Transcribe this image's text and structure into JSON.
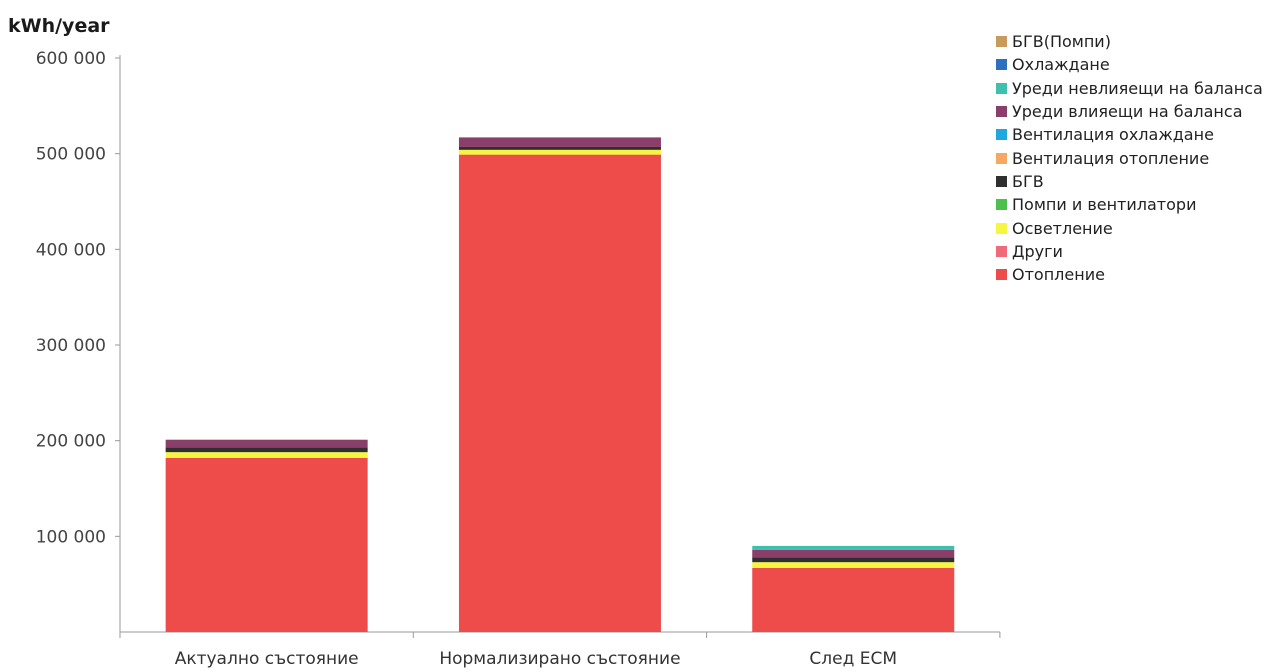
{
  "chart_data": {
    "type": "bar",
    "stacked": true,
    "ylabel": "kWh/year",
    "ylim": [
      0,
      600000
    ],
    "yticks": [
      "100 000",
      "200 000",
      "300 000",
      "400 000",
      "500 000",
      "600 000"
    ],
    "ytick_values": [
      100000,
      200000,
      300000,
      400000,
      500000,
      600000
    ],
    "categories": [
      "Актуално състояние",
      "Нормализирано състояние",
      "След ЕСМ"
    ],
    "legend_position": "right",
    "grid": false,
    "series": [
      {
        "name": "Отопление",
        "color": "#ee4b4b",
        "values": [
          182000,
          499000,
          67000
        ]
      },
      {
        "name": "Други",
        "color": "#f06a7a",
        "values": [
          0,
          0,
          0
        ]
      },
      {
        "name": "Осветление",
        "color": "#f5f542",
        "values": [
          6000,
          5000,
          6000
        ]
      },
      {
        "name": "Помпи и вентилатори",
        "color": "#4cbf4c",
        "values": [
          0,
          0,
          0
        ]
      },
      {
        "name": "БГВ",
        "color": "#2f2f2f",
        "values": [
          5000,
          3000,
          5000
        ]
      },
      {
        "name": "Вентилация отопление",
        "color": "#f4a862",
        "values": [
          0,
          0,
          0
        ]
      },
      {
        "name": "Вентилация охлаждане",
        "color": "#1fa8e0",
        "values": [
          0,
          0,
          0
        ]
      },
      {
        "name": "Уреди влияещи на баланса",
        "color": "#8a3f6b",
        "values": [
          8000,
          10000,
          8000
        ]
      },
      {
        "name": "Уреди невлияещи на баланса",
        "color": "#3fbfae",
        "values": [
          0,
          0,
          4000
        ]
      },
      {
        "name": "Охлаждане",
        "color": "#2f6fbf",
        "values": [
          0,
          0,
          0
        ]
      },
      {
        "name": "БГВ(Помпи)",
        "color": "#c99a5e",
        "values": [
          0,
          0,
          0
        ]
      }
    ],
    "legend_order": [
      "БГВ(Помпи)",
      "Охлаждане",
      "Уреди невлияещи на баланса",
      "Уреди влияещи на баланса",
      "Вентилация охлаждане",
      "Вентилация отопление",
      "БГВ",
      "Помпи и вентилатори",
      "Осветление",
      "Други",
      "Отопление"
    ]
  }
}
